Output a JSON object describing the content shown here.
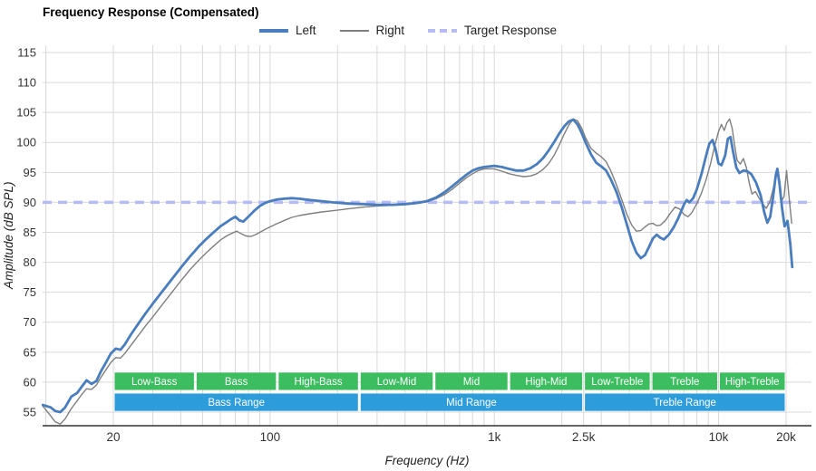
{
  "title": "Frequency Response (Compensated)",
  "legend": [
    {
      "label": "Left",
      "color": "#4a7dbd",
      "dash": false,
      "weight": 4
    },
    {
      "label": "Right",
      "color": "#7f7f7f",
      "dash": false,
      "weight": 2
    },
    {
      "label": "Target Response",
      "color": "#b4bbf5",
      "dash": true,
      "weight": 4
    }
  ],
  "axes": {
    "x_label": "Frequency (Hz)",
    "y_label": "Amplitude (dB SPL)"
  },
  "chart_data": {
    "type": "line",
    "x_scale": "log",
    "title": "Frequency Response (Compensated)",
    "xlabel": "Frequency (Hz)",
    "ylabel": "Amplitude (dB SPL)",
    "ylim": [
      55,
      115
    ],
    "xlim": [
      9.7,
      26000
    ],
    "grid": true,
    "grid_color": "#d9d9d9",
    "axis_line_color": "#333333",
    "tick_color": "#333333",
    "y_ticks": [
      55,
      60,
      65,
      70,
      75,
      80,
      85,
      90,
      95,
      100,
      105,
      110,
      115
    ],
    "x_ticks": [
      {
        "f": 20,
        "label": "20"
      },
      {
        "f": 100,
        "label": "100"
      },
      {
        "f": 1000,
        "label": "1k"
      },
      {
        "f": 2500,
        "label": "2.5k"
      },
      {
        "f": 10000,
        "label": "10k"
      },
      {
        "f": 20000,
        "label": "20k"
      }
    ],
    "target": {
      "label": "Target Response",
      "value": 90,
      "color": "#b4bbf5"
    },
    "series": [
      {
        "name": "Right",
        "color": "#7f7f7f",
        "width": 1.4,
        "points": [
          [
            9.7,
            56
          ],
          [
            10.3,
            54.8
          ],
          [
            11,
            53.4
          ],
          [
            11.6,
            53
          ],
          [
            12.2,
            53.9
          ],
          [
            13,
            55.6
          ],
          [
            13.8,
            56.9
          ],
          [
            14.5,
            58
          ],
          [
            15.2,
            58.9
          ],
          [
            16,
            58.8
          ],
          [
            16.8,
            59.5
          ],
          [
            17.6,
            60.8
          ],
          [
            18.5,
            62
          ],
          [
            19.5,
            63.3
          ],
          [
            20.5,
            64.1
          ],
          [
            21.5,
            64
          ],
          [
            22.5,
            64.8
          ],
          [
            24,
            66.2
          ],
          [
            26,
            67.9
          ],
          [
            28,
            69.5
          ],
          [
            30,
            70.9
          ],
          [
            33,
            72.9
          ],
          [
            36,
            74.7
          ],
          [
            40,
            76.9
          ],
          [
            44,
            78.8
          ],
          [
            48,
            80.3
          ],
          [
            52,
            81.6
          ],
          [
            56,
            82.7
          ],
          [
            60,
            83.7
          ],
          [
            64,
            84.4
          ],
          [
            68,
            84.9
          ],
          [
            71,
            85.2
          ],
          [
            74,
            84.8
          ],
          [
            78,
            84.4
          ],
          [
            82,
            84.3
          ],
          [
            86,
            84.6
          ],
          [
            90,
            85
          ],
          [
            95,
            85.5
          ],
          [
            100,
            85.9
          ],
          [
            108,
            86.5
          ],
          [
            116,
            87
          ],
          [
            125,
            87.5
          ],
          [
            135,
            87.8
          ],
          [
            150,
            88.1
          ],
          [
            170,
            88.4
          ],
          [
            190,
            88.6
          ],
          [
            220,
            88.9
          ],
          [
            260,
            89.2
          ],
          [
            300,
            89.4
          ],
          [
            350,
            89.5
          ],
          [
            400,
            89.6
          ],
          [
            450,
            89.8
          ],
          [
            500,
            90.1
          ],
          [
            550,
            90.6
          ],
          [
            600,
            91.3
          ],
          [
            650,
            92.2
          ],
          [
            700,
            93.2
          ],
          [
            750,
            94.1
          ],
          [
            800,
            94.8
          ],
          [
            850,
            95.3
          ],
          [
            900,
            95.6
          ],
          [
            1000,
            95.6
          ],
          [
            1080,
            95.2
          ],
          [
            1160,
            94.8
          ],
          [
            1250,
            94.5
          ],
          [
            1350,
            94.3
          ],
          [
            1450,
            94.4
          ],
          [
            1550,
            94.8
          ],
          [
            1650,
            95.5
          ],
          [
            1750,
            96.5
          ],
          [
            1850,
            97.9
          ],
          [
            1950,
            99.6
          ],
          [
            2050,
            101.4
          ],
          [
            2150,
            102.9
          ],
          [
            2250,
            103.9
          ],
          [
            2350,
            103.6
          ],
          [
            2450,
            102.4
          ],
          [
            2550,
            100.8
          ],
          [
            2700,
            99
          ],
          [
            2850,
            98.2
          ],
          [
            3000,
            97.6
          ],
          [
            3150,
            96.8
          ],
          [
            3300,
            95.3
          ],
          [
            3500,
            93
          ],
          [
            3700,
            90.5
          ],
          [
            3900,
            88
          ],
          [
            4100,
            86.2
          ],
          [
            4300,
            85.2
          ],
          [
            4500,
            85.3
          ],
          [
            4700,
            85.9
          ],
          [
            4900,
            86.4
          ],
          [
            5100,
            86.5
          ],
          [
            5300,
            86.1
          ],
          [
            5500,
            86.2
          ],
          [
            5800,
            87
          ],
          [
            6100,
            88.2
          ],
          [
            6400,
            89.2
          ],
          [
            6700,
            88.9
          ],
          [
            7000,
            88
          ],
          [
            7300,
            87.6
          ],
          [
            7600,
            88.3
          ],
          [
            8000,
            89.8
          ],
          [
            8400,
            91.6
          ],
          [
            8800,
            93.8
          ],
          [
            9200,
            96.4
          ],
          [
            9600,
            99.4
          ],
          [
            10000,
            101.8
          ],
          [
            10300,
            103
          ],
          [
            10600,
            102
          ],
          [
            10900,
            103.3
          ],
          [
            11200,
            103.9
          ],
          [
            11500,
            102.4
          ],
          [
            11800,
            99.5
          ],
          [
            12100,
            97
          ],
          [
            12500,
            96.4
          ],
          [
            12900,
            97.3
          ],
          [
            13300,
            95.8
          ],
          [
            13700,
            93.2
          ],
          [
            14100,
            91.4
          ],
          [
            14600,
            91.8
          ],
          [
            15100,
            90.8
          ],
          [
            15700,
            89.8
          ],
          [
            16300,
            89
          ],
          [
            16900,
            90
          ],
          [
            17400,
            91.8
          ],
          [
            17900,
            93.8
          ],
          [
            18300,
            95.3
          ],
          [
            18700,
            92.6
          ],
          [
            19100,
            90.2
          ],
          [
            19600,
            91
          ],
          [
            20100,
            95.3
          ],
          [
            20600,
            91
          ],
          [
            21200,
            86.5
          ]
        ]
      },
      {
        "name": "Left",
        "color": "#4a7dbd",
        "width": 2.8,
        "points": [
          [
            9.7,
            56.2
          ],
          [
            10.5,
            55.8
          ],
          [
            11,
            55.2
          ],
          [
            11.6,
            55
          ],
          [
            12.2,
            55.8
          ],
          [
            13,
            57.6
          ],
          [
            13.8,
            58.2
          ],
          [
            14.5,
            59.3
          ],
          [
            15.2,
            60.3
          ],
          [
            16,
            59.7
          ],
          [
            16.8,
            60.2
          ],
          [
            17.6,
            61.8
          ],
          [
            18.5,
            63.2
          ],
          [
            19.5,
            64.8
          ],
          [
            20.5,
            65.6
          ],
          [
            21.5,
            65.4
          ],
          [
            22.5,
            66.3
          ],
          [
            24,
            68
          ],
          [
            26,
            69.9
          ],
          [
            28,
            71.6
          ],
          [
            30,
            73.1
          ],
          [
            33,
            75.1
          ],
          [
            36,
            76.9
          ],
          [
            40,
            79.1
          ],
          [
            44,
            81
          ],
          [
            48,
            82.6
          ],
          [
            52,
            83.9
          ],
          [
            56,
            85
          ],
          [
            60,
            86
          ],
          [
            64,
            86.7
          ],
          [
            67,
            87.2
          ],
          [
            70,
            87.6
          ],
          [
            73,
            87
          ],
          [
            76,
            86.8
          ],
          [
            80,
            87.6
          ],
          [
            85,
            88.6
          ],
          [
            90,
            89.4
          ],
          [
            95,
            89.9
          ],
          [
            100,
            90.2
          ],
          [
            108,
            90.5
          ],
          [
            116,
            90.6
          ],
          [
            125,
            90.7
          ],
          [
            135,
            90.6
          ],
          [
            150,
            90.4
          ],
          [
            170,
            90.2
          ],
          [
            190,
            90
          ],
          [
            220,
            89.8
          ],
          [
            260,
            89.7
          ],
          [
            300,
            89.6
          ],
          [
            350,
            89.6
          ],
          [
            400,
            89.7
          ],
          [
            450,
            89.9
          ],
          [
            500,
            90.2
          ],
          [
            550,
            90.8
          ],
          [
            600,
            91.7
          ],
          [
            650,
            92.7
          ],
          [
            700,
            93.7
          ],
          [
            750,
            94.6
          ],
          [
            800,
            95.3
          ],
          [
            850,
            95.7
          ],
          [
            900,
            95.9
          ],
          [
            1000,
            96.1
          ],
          [
            1080,
            95.9
          ],
          [
            1160,
            95.6
          ],
          [
            1250,
            95.3
          ],
          [
            1350,
            95.3
          ],
          [
            1450,
            95.7
          ],
          [
            1550,
            96.4
          ],
          [
            1650,
            97.4
          ],
          [
            1750,
            98.7
          ],
          [
            1850,
            100.1
          ],
          [
            1950,
            101.5
          ],
          [
            2050,
            102.7
          ],
          [
            2150,
            103.5
          ],
          [
            2250,
            103.8
          ],
          [
            2350,
            103
          ],
          [
            2450,
            101.6
          ],
          [
            2550,
            100
          ],
          [
            2700,
            98
          ],
          [
            2850,
            96.6
          ],
          [
            3000,
            96
          ],
          [
            3150,
            95.3
          ],
          [
            3300,
            93.9
          ],
          [
            3500,
            91.8
          ],
          [
            3700,
            89.2
          ],
          [
            3900,
            86.3
          ],
          [
            4100,
            83.5
          ],
          [
            4300,
            81.6
          ],
          [
            4500,
            80.7
          ],
          [
            4700,
            81.2
          ],
          [
            4900,
            82.6
          ],
          [
            5100,
            84
          ],
          [
            5300,
            84.6
          ],
          [
            5500,
            84.1
          ],
          [
            5700,
            83.8
          ],
          [
            6000,
            84.6
          ],
          [
            6300,
            85.8
          ],
          [
            6600,
            87.3
          ],
          [
            7000,
            89.6
          ],
          [
            7200,
            90.4
          ],
          [
            7400,
            90
          ],
          [
            7700,
            90.7
          ],
          [
            8000,
            92.2
          ],
          [
            8400,
            94.8
          ],
          [
            8800,
            97.8
          ],
          [
            9100,
            99.8
          ],
          [
            9400,
            100.4
          ],
          [
            9700,
            98.8
          ],
          [
            10000,
            96.5
          ],
          [
            10300,
            96.2
          ],
          [
            10700,
            97.8
          ],
          [
            11000,
            100.6
          ],
          [
            11300,
            100.9
          ],
          [
            11600,
            98.5
          ],
          [
            12000,
            95.8
          ],
          [
            12400,
            94.9
          ],
          [
            12900,
            95.3
          ],
          [
            13400,
            95.2
          ],
          [
            14000,
            94.7
          ],
          [
            14700,
            93.3
          ],
          [
            15400,
            91.2
          ],
          [
            16000,
            88.3
          ],
          [
            16500,
            86.6
          ],
          [
            17000,
            87.6
          ],
          [
            17500,
            90.8
          ],
          [
            18000,
            94.6
          ],
          [
            18300,
            95.6
          ],
          [
            18700,
            93
          ],
          [
            19200,
            89
          ],
          [
            19700,
            86
          ],
          [
            20300,
            86.9
          ],
          [
            20900,
            83
          ],
          [
            21300,
            79.2
          ]
        ]
      }
    ],
    "bands": {
      "sub_color": "#3cbd60",
      "main_color": "#2d9cdb",
      "text_color": "#ffffff",
      "sub": [
        {
          "label": "Low-Bass",
          "f1": 20,
          "f2": 46.4
        },
        {
          "label": "Bass",
          "f1": 46.4,
          "f2": 107.7
        },
        {
          "label": "High-Bass",
          "f1": 107.7,
          "f2": 250
        },
        {
          "label": "Low-Mid",
          "f1": 250,
          "f2": 538.6
        },
        {
          "label": "Mid",
          "f1": 538.6,
          "f2": 1160.5
        },
        {
          "label": "High-Mid",
          "f1": 1160.5,
          "f2": 2500
        },
        {
          "label": "Low-Treble",
          "f1": 2500,
          "f2": 5000
        },
        {
          "label": "Treble",
          "f1": 5000,
          "f2": 10000
        },
        {
          "label": "High-Treble",
          "f1": 10000,
          "f2": 20000
        }
      ],
      "main": [
        {
          "label": "Bass Range",
          "f1": 20,
          "f2": 250
        },
        {
          "label": "Mid Range",
          "f1": 250,
          "f2": 2500
        },
        {
          "label": "Treble Range",
          "f1": 2500,
          "f2": 20000
        }
      ]
    }
  }
}
